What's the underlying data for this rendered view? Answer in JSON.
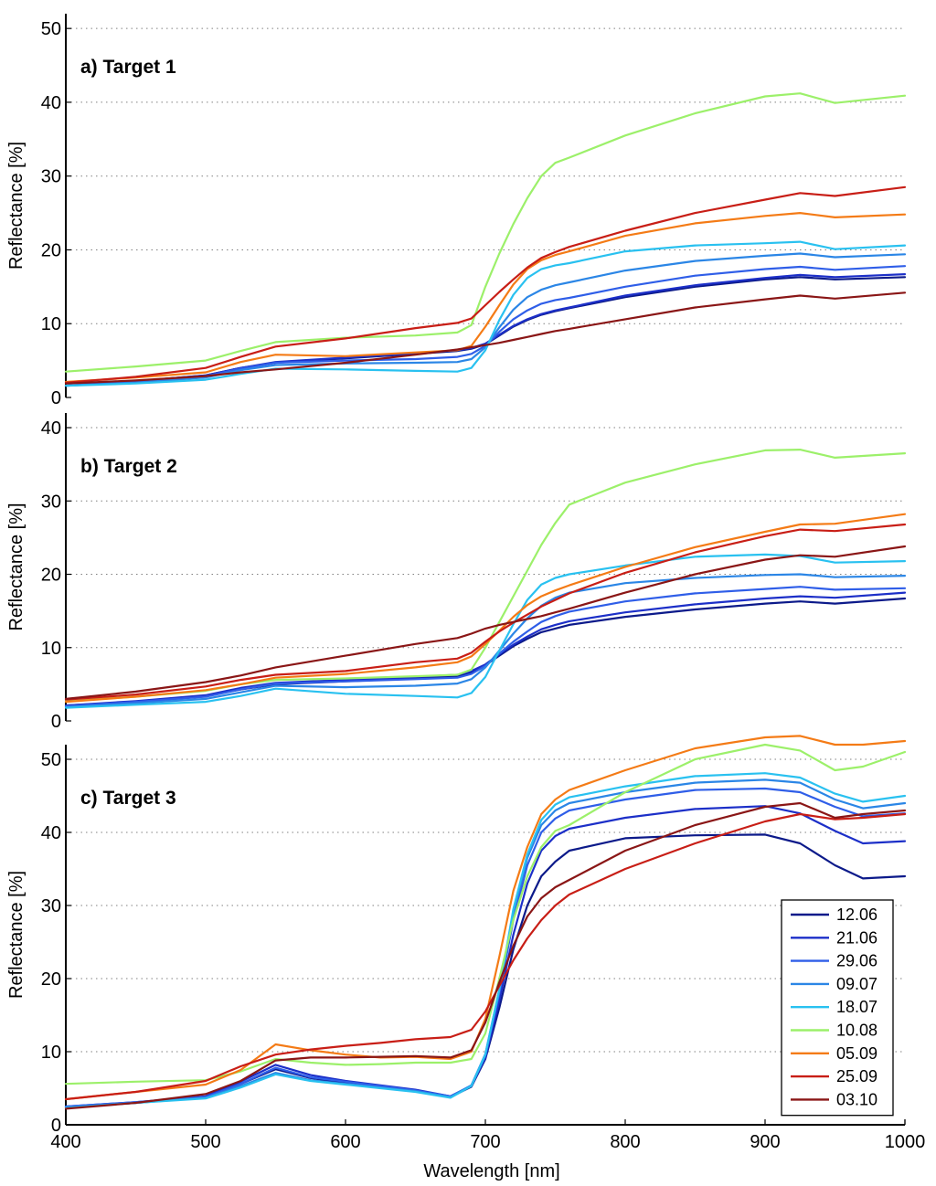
{
  "figure": {
    "xlabel": "Wavelength [nm]"
  },
  "legend": {
    "entries": [
      {
        "label": "12.06",
        "color": "#0c1a8a"
      },
      {
        "label": "21.06",
        "color": "#1c2fc8"
      },
      {
        "label": "29.06",
        "color": "#2f5ee8"
      },
      {
        "label": "09.07",
        "color": "#2b86e6"
      },
      {
        "label": "18.07",
        "color": "#29c1f0"
      },
      {
        "label": "10.08",
        "color": "#9cf06a"
      },
      {
        "label": "05.09",
        "color": "#f47b16"
      },
      {
        "label": "25.09",
        "color": "#c81e16"
      },
      {
        "label": "03.10",
        "color": "#8a1616"
      }
    ]
  },
  "chart_data": [
    {
      "type": "line",
      "title": "a) Target 1",
      "xlabel": "Wavelength [nm]",
      "ylabel": "Reflectance [%]",
      "xlim": [
        400,
        1000
      ],
      "ylim": [
        0,
        52
      ],
      "yticks": [
        0,
        10,
        20,
        30,
        40,
        50
      ],
      "xticks": [
        400,
        500,
        600,
        700,
        800,
        900,
        1000
      ],
      "grid": "horizontal dotted",
      "x": [
        400,
        450,
        500,
        525,
        550,
        600,
        650,
        680,
        690,
        700,
        710,
        720,
        730,
        740,
        750,
        760,
        800,
        850,
        900,
        925,
        950,
        1000
      ],
      "series": [
        {
          "name": "12.06",
          "values": [
            1.6,
            2.2,
            3.0,
            4.0,
            4.7,
            5.3,
            5.9,
            6.3,
            6.6,
            7.2,
            8.4,
            9.6,
            10.5,
            11.2,
            11.7,
            12.1,
            13.6,
            15.0,
            16.0,
            16.3,
            16.0,
            16.3
          ]
        },
        {
          "name": "21.06",
          "values": [
            1.6,
            2.2,
            3.0,
            4.0,
            4.8,
            5.4,
            6.0,
            6.4,
            6.7,
            7.3,
            8.5,
            9.7,
            10.6,
            11.3,
            11.8,
            12.2,
            13.8,
            15.2,
            16.2,
            16.6,
            16.3,
            16.7
          ]
        },
        {
          "name": "29.06",
          "values": [
            1.6,
            2.1,
            2.9,
            3.9,
            4.7,
            5.0,
            5.2,
            5.5,
            5.9,
            7.0,
            8.9,
            10.6,
            11.8,
            12.7,
            13.2,
            13.5,
            15.0,
            16.5,
            17.4,
            17.7,
            17.3,
            17.8
          ]
        },
        {
          "name": "09.07",
          "values": [
            1.6,
            2.0,
            2.7,
            3.7,
            4.4,
            4.6,
            4.7,
            4.8,
            5.2,
            6.8,
            9.5,
            11.9,
            13.6,
            14.6,
            15.2,
            15.6,
            17.2,
            18.5,
            19.2,
            19.5,
            19.0,
            19.4
          ]
        },
        {
          "name": "18.07",
          "values": [
            1.6,
            1.9,
            2.4,
            3.2,
            3.9,
            3.8,
            3.6,
            3.5,
            4.0,
            6.4,
            10.5,
            13.9,
            16.2,
            17.4,
            17.9,
            18.2,
            19.8,
            20.6,
            20.9,
            21.1,
            20.1,
            20.6
          ]
        },
        {
          "name": "10.08",
          "values": [
            3.5,
            4.2,
            5.0,
            6.3,
            7.5,
            8.1,
            8.4,
            8.8,
            9.8,
            15.0,
            19.5,
            23.5,
            27.0,
            30.0,
            31.8,
            32.5,
            35.5,
            38.5,
            40.8,
            41.2,
            39.9,
            40.9
          ]
        },
        {
          "name": "05.09",
          "values": [
            2.1,
            2.7,
            3.4,
            4.8,
            5.8,
            5.6,
            6.1,
            6.4,
            7.0,
            9.6,
            12.5,
            15.3,
            17.4,
            18.6,
            19.3,
            19.8,
            21.9,
            23.6,
            24.6,
            25.0,
            24.4,
            24.8
          ]
        },
        {
          "name": "25.09",
          "values": [
            2.0,
            2.8,
            4.0,
            5.5,
            6.9,
            8.0,
            9.4,
            10.1,
            10.7,
            12.5,
            14.3,
            16.0,
            17.6,
            18.9,
            19.7,
            20.4,
            22.6,
            25.0,
            26.8,
            27.7,
            27.3,
            28.5
          ]
        },
        {
          "name": "03.10",
          "values": [
            1.9,
            2.3,
            2.9,
            3.4,
            3.8,
            4.7,
            5.8,
            6.5,
            6.8,
            7.1,
            7.4,
            7.8,
            8.2,
            8.6,
            9.0,
            9.3,
            10.6,
            12.2,
            13.3,
            13.8,
            13.4,
            14.2
          ]
        }
      ]
    },
    {
      "type": "line",
      "title": "b) Target 2",
      "xlabel": "Wavelength [nm]",
      "ylabel": "Reflectance [%]",
      "xlim": [
        400,
        1000
      ],
      "ylim": [
        0,
        42
      ],
      "yticks": [
        0,
        10,
        20,
        30,
        40
      ],
      "xticks": [
        400,
        500,
        600,
        700,
        800,
        900,
        1000
      ],
      "grid": "horizontal dotted",
      "x": [
        400,
        450,
        500,
        525,
        550,
        600,
        650,
        680,
        690,
        700,
        710,
        720,
        730,
        740,
        750,
        760,
        800,
        850,
        900,
        925,
        950,
        1000
      ],
      "series": [
        {
          "name": "12.06",
          "values": [
            2.1,
            2.6,
            3.4,
            4.3,
            5.0,
            5.4,
            5.8,
            6.1,
            6.6,
            7.6,
            8.9,
            10.2,
            11.2,
            12.1,
            12.6,
            13.1,
            14.2,
            15.2,
            16.0,
            16.3,
            16.0,
            16.7
          ]
        },
        {
          "name": "21.06",
          "values": [
            2.1,
            2.7,
            3.5,
            4.5,
            5.2,
            5.6,
            6.0,
            6.3,
            6.8,
            7.7,
            9.1,
            10.4,
            11.5,
            12.5,
            13.1,
            13.6,
            14.8,
            15.9,
            16.7,
            17.0,
            16.8,
            17.5
          ]
        },
        {
          "name": "29.06",
          "values": [
            2.0,
            2.6,
            3.3,
            4.3,
            5.1,
            5.4,
            5.7,
            5.9,
            6.4,
            7.5,
            9.2,
            10.8,
            12.2,
            13.5,
            14.3,
            14.9,
            16.3,
            17.4,
            18.0,
            18.3,
            17.9,
            18.1
          ]
        },
        {
          "name": "09.07",
          "values": [
            1.9,
            2.4,
            3.0,
            3.9,
            4.8,
            4.6,
            4.8,
            5.1,
            5.7,
            7.3,
            9.6,
            11.9,
            14.0,
            15.7,
            16.8,
            17.5,
            18.8,
            19.5,
            19.9,
            20.0,
            19.6,
            19.8
          ]
        },
        {
          "name": "18.07",
          "values": [
            1.8,
            2.2,
            2.6,
            3.4,
            4.4,
            3.7,
            3.4,
            3.2,
            3.8,
            6.0,
            9.6,
            13.2,
            16.5,
            18.6,
            19.5,
            20.0,
            21.2,
            22.4,
            22.7,
            22.5,
            21.6,
            21.8
          ]
        },
        {
          "name": "10.08",
          "values": [
            2.7,
            3.3,
            4.1,
            5.0,
            5.6,
            5.8,
            6.1,
            6.3,
            7.0,
            10.0,
            13.5,
            17.0,
            20.5,
            24.0,
            27.0,
            29.5,
            32.5,
            35.0,
            36.9,
            37.0,
            35.9,
            36.5
          ]
        },
        {
          "name": "05.09",
          "values": [
            2.6,
            3.3,
            4.2,
            5.0,
            5.9,
            6.4,
            7.3,
            8.0,
            8.8,
            10.5,
            12.3,
            14.2,
            15.8,
            17.0,
            17.8,
            18.5,
            21.0,
            23.7,
            25.8,
            26.8,
            26.9,
            28.2
          ]
        },
        {
          "name": "25.09",
          "values": [
            2.9,
            3.6,
            4.7,
            5.6,
            6.3,
            6.8,
            8.0,
            8.5,
            9.3,
            10.8,
            12.2,
            13.4,
            14.5,
            15.6,
            16.5,
            17.4,
            20.2,
            23.0,
            25.2,
            26.1,
            25.9,
            26.8
          ]
        },
        {
          "name": "03.10",
          "values": [
            3.0,
            4.0,
            5.3,
            6.2,
            7.3,
            8.9,
            10.5,
            11.3,
            11.9,
            12.6,
            13.1,
            13.5,
            13.9,
            14.3,
            14.8,
            15.3,
            17.5,
            20.0,
            22.0,
            22.6,
            22.4,
            23.8
          ]
        }
      ]
    },
    {
      "type": "line",
      "title": "c) Target 3",
      "xlabel": "Wavelength [nm]",
      "ylabel": "Reflectance [%]",
      "xlim": [
        400,
        1000
      ],
      "ylim": [
        0,
        52
      ],
      "yticks": [
        0,
        10,
        20,
        30,
        40,
        50
      ],
      "xticks": [
        400,
        500,
        600,
        700,
        800,
        900,
        1000
      ],
      "grid": "horizontal dotted",
      "x": [
        400,
        450,
        500,
        525,
        550,
        575,
        600,
        625,
        650,
        675,
        690,
        700,
        710,
        720,
        730,
        740,
        750,
        760,
        800,
        850,
        900,
        925,
        950,
        970,
        1000
      ],
      "series": [
        {
          "name": "12.06",
          "values": [
            2.4,
            3.0,
            3.8,
            5.6,
            7.6,
            6.4,
            5.7,
            5.2,
            4.6,
            3.8,
            5.2,
            9.0,
            16.0,
            24.0,
            30.0,
            34.0,
            36.0,
            37.5,
            39.2,
            39.6,
            39.7,
            38.5,
            35.5,
            33.7,
            34.0
          ]
        },
        {
          "name": "21.06",
          "values": [
            2.5,
            3.1,
            3.9,
            5.9,
            8.2,
            6.8,
            6.0,
            5.4,
            4.8,
            3.9,
            5.3,
            9.2,
            17.0,
            26.0,
            33.0,
            37.5,
            39.5,
            40.5,
            42.0,
            43.2,
            43.6,
            42.6,
            40.2,
            38.5,
            38.8
          ]
        },
        {
          "name": "29.06",
          "values": [
            2.5,
            3.1,
            3.8,
            5.6,
            7.8,
            6.5,
            5.9,
            5.3,
            4.7,
            3.9,
            5.4,
            9.5,
            18.0,
            28.0,
            35.5,
            40.0,
            41.9,
            43.0,
            44.5,
            45.8,
            46.0,
            45.5,
            43.5,
            42.2,
            42.6
          ]
        },
        {
          "name": "09.07",
          "values": [
            2.4,
            3.0,
            3.7,
            5.3,
            7.1,
            6.1,
            5.6,
            5.1,
            4.6,
            3.8,
            5.4,
            9.7,
            18.5,
            29.0,
            36.5,
            41.0,
            43.0,
            44.0,
            45.5,
            46.8,
            47.2,
            46.8,
            44.5,
            43.3,
            44.0
          ]
        },
        {
          "name": "18.07",
          "values": [
            2.3,
            3.0,
            3.6,
            5.1,
            6.9,
            6.0,
            5.5,
            5.0,
            4.5,
            3.7,
            5.3,
            9.6,
            18.5,
            29.5,
            37.0,
            41.7,
            43.8,
            44.8,
            46.3,
            47.7,
            48.1,
            47.5,
            45.3,
            44.2,
            45.0
          ]
        },
        {
          "name": "10.08",
          "values": [
            5.6,
            5.9,
            6.1,
            7.3,
            9.0,
            8.5,
            8.2,
            8.3,
            8.5,
            8.5,
            9.0,
            12.5,
            20.0,
            28.0,
            34.0,
            38.0,
            40.2,
            41.0,
            45.5,
            50.0,
            52.0,
            51.2,
            48.5,
            49.0,
            51.0
          ]
        },
        {
          "name": "05.09",
          "values": [
            3.5,
            4.5,
            5.5,
            7.5,
            11.0,
            10.2,
            9.6,
            9.2,
            9.3,
            9.0,
            10.0,
            14.5,
            23.0,
            32.0,
            38.0,
            42.5,
            44.5,
            45.8,
            48.5,
            51.5,
            53.0,
            53.2,
            52.0,
            52.0,
            52.5
          ]
        },
        {
          "name": "25.09",
          "values": [
            3.5,
            4.5,
            6.0,
            8.0,
            9.6,
            10.3,
            10.8,
            11.2,
            11.7,
            12.0,
            13.0,
            15.5,
            19.0,
            22.5,
            25.5,
            28.0,
            30.0,
            31.5,
            35.0,
            38.5,
            41.5,
            42.5,
            41.8,
            42.0,
            42.5
          ]
        },
        {
          "name": "03.10",
          "values": [
            2.2,
            3.0,
            4.2,
            6.0,
            8.8,
            9.2,
            9.2,
            9.3,
            9.4,
            9.2,
            10.2,
            14.0,
            19.5,
            24.5,
            28.5,
            31.0,
            32.5,
            33.5,
            37.5,
            41.0,
            43.5,
            44.0,
            42.0,
            42.5,
            43.0
          ]
        }
      ]
    }
  ]
}
